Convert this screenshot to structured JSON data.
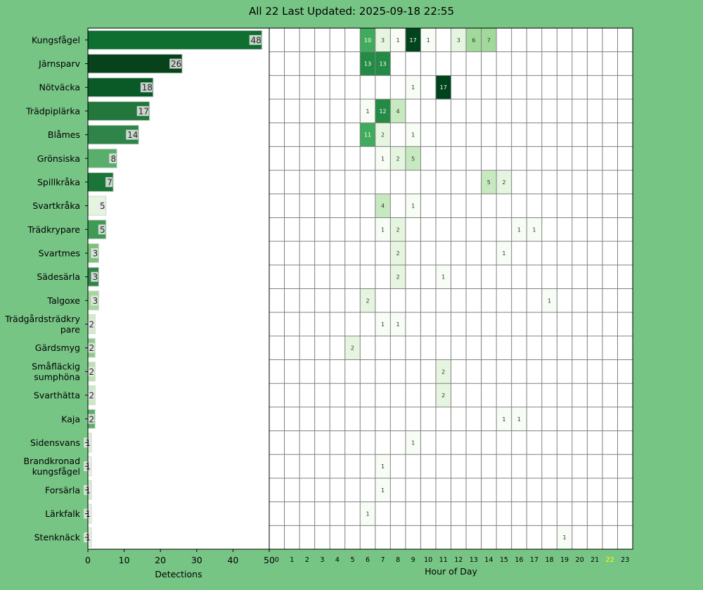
{
  "title": "All 22 Last Updated: 2025-09-18 22:55",
  "chart_data": [
    {
      "type": "bar",
      "orientation": "horizontal",
      "xlabel": "Detections",
      "xlim": [
        0,
        50
      ],
      "xticks": [
        0,
        10,
        20,
        30,
        40,
        50
      ],
      "categories": [
        "Kungsfågel",
        "Järnsparv",
        "Nötväcka",
        "Trädpiplärka",
        "Blåmes",
        "Grönsiska",
        "Spillkråka",
        "Svartkråka",
        "Trädkrypare",
        "Svartmes",
        "Sädesärla",
        "Talgoxe",
        "Trädgårdsträdkrypare",
        "Gärdsmyg",
        "Småfläckig sumphöna",
        "Svarthätta",
        "Kaja",
        "Sidensvans",
        "Brandkronad kungsfågel",
        "Forsärla",
        "Lärkfalk",
        "Stenknäck"
      ],
      "category_labels": [
        [
          "Kungsfågel"
        ],
        [
          "Järnsparv"
        ],
        [
          "Nötväcka"
        ],
        [
          "Trädpiplärka"
        ],
        [
          "Blåmes"
        ],
        [
          "Grönsiska"
        ],
        [
          "Spillkråka"
        ],
        [
          "Svartkråka"
        ],
        [
          "Trädkrypare"
        ],
        [
          "Svartmes"
        ],
        [
          "Sädesärla"
        ],
        [
          "Talgoxe"
        ],
        [
          "Trädgårdsträdkry",
          "pare"
        ],
        [
          "Gärdsmyg"
        ],
        [
          "Småfläckig",
          "sumphöna"
        ],
        [
          "Svarthätta"
        ],
        [
          "Kaja"
        ],
        [
          "Sidensvans"
        ],
        [
          "Brandkronad",
          "kungsfågel"
        ],
        [
          "Forsärla"
        ],
        [
          "Lärkfalk"
        ],
        [
          "Stenknäck"
        ]
      ],
      "values": [
        48,
        26,
        18,
        17,
        14,
        8,
        7,
        5,
        5,
        3,
        3,
        3,
        2,
        2,
        2,
        2,
        2,
        1,
        1,
        1,
        1,
        1
      ],
      "bar_colors": [
        "#0e6f31",
        "#08421a",
        "#0a5a28",
        "#23763c",
        "#2f844a",
        "#5aae6b",
        "#1b7539",
        "#e4f5df",
        "#3e9a55",
        "#7cc27d",
        "#2f844a",
        "#a3d89d",
        "#cfeec8",
        "#8dcc86",
        "#b7e3ae",
        "#c9ebc1",
        "#5aae6b",
        "#d8f1d2",
        "#e8f6e4",
        "#d0efc9",
        "#e0f4db",
        "#e0f4db"
      ]
    },
    {
      "type": "heatmap",
      "xlabel": "Hour of Day",
      "hours": [
        0,
        1,
        2,
        3,
        4,
        5,
        6,
        7,
        8,
        9,
        10,
        11,
        12,
        13,
        14,
        15,
        16,
        17,
        18,
        19,
        20,
        21,
        22,
        23
      ],
      "highlight_hour": 22,
      "highlight_color": "#ffff00",
      "rows": [
        {
          "species": "Kungsfågel",
          "cells": [
            [
              6,
              10
            ],
            [
              7,
              3
            ],
            [
              8,
              1
            ],
            [
              9,
              17
            ],
            [
              10,
              1
            ],
            [
              12,
              3
            ],
            [
              13,
              6
            ],
            [
              14,
              7
            ]
          ]
        },
        {
          "species": "Järnsparv",
          "cells": [
            [
              6,
              13
            ],
            [
              7,
              13
            ]
          ]
        },
        {
          "species": "Nötväcka",
          "cells": [
            [
              9,
              1
            ],
            [
              11,
              17
            ]
          ]
        },
        {
          "species": "Trädpiplärka",
          "cells": [
            [
              6,
              1
            ],
            [
              7,
              12
            ],
            [
              8,
              4
            ]
          ]
        },
        {
          "species": "Blåmes",
          "cells": [
            [
              6,
              11
            ],
            [
              7,
              2
            ],
            [
              9,
              1
            ]
          ]
        },
        {
          "species": "Grönsiska",
          "cells": [
            [
              7,
              1
            ],
            [
              8,
              2
            ],
            [
              9,
              5
            ]
          ]
        },
        {
          "species": "Spillkråka",
          "cells": [
            [
              14,
              5
            ],
            [
              15,
              2
            ]
          ]
        },
        {
          "species": "Svartkråka",
          "cells": [
            [
              7,
              4
            ],
            [
              9,
              1
            ]
          ]
        },
        {
          "species": "Trädkrypare",
          "cells": [
            [
              7,
              1
            ],
            [
              8,
              2
            ],
            [
              16,
              1
            ],
            [
              17,
              1
            ]
          ]
        },
        {
          "species": "Svartmes",
          "cells": [
            [
              8,
              2
            ],
            [
              15,
              1
            ]
          ]
        },
        {
          "species": "Sädesärla",
          "cells": [
            [
              8,
              2
            ],
            [
              11,
              1
            ]
          ]
        },
        {
          "species": "Talgoxe",
          "cells": [
            [
              6,
              2
            ],
            [
              18,
              1
            ]
          ]
        },
        {
          "species": "Trädgårdsträdkrypare",
          "cells": [
            [
              7,
              1
            ],
            [
              8,
              1
            ]
          ]
        },
        {
          "species": "Gärdsmyg",
          "cells": [
            [
              5,
              2
            ]
          ]
        },
        {
          "species": "Småfläckig sumphöna",
          "cells": [
            [
              11,
              2
            ]
          ]
        },
        {
          "species": "Svarthätta",
          "cells": [
            [
              11,
              2
            ]
          ]
        },
        {
          "species": "Kaja",
          "cells": [
            [
              15,
              1
            ],
            [
              16,
              1
            ]
          ]
        },
        {
          "species": "Sidensvans",
          "cells": [
            [
              9,
              1
            ]
          ]
        },
        {
          "species": "Brandkronad kungsfågel",
          "cells": [
            [
              7,
              1
            ]
          ]
        },
        {
          "species": "Forsärla",
          "cells": [
            [
              7,
              1
            ]
          ]
        },
        {
          "species": "Lärkfalk",
          "cells": [
            [
              6,
              1
            ]
          ]
        },
        {
          "species": "Stenknäck",
          "cells": [
            [
              19,
              1
            ]
          ]
        }
      ],
      "colormap": [
        "#f7fcf5",
        "#e5f5e0",
        "#c7e9c0",
        "#a1d99b",
        "#74c476",
        "#41ab5d",
        "#238b45",
        "#006d2c",
        "#00441b"
      ],
      "vmax": 17
    }
  ]
}
